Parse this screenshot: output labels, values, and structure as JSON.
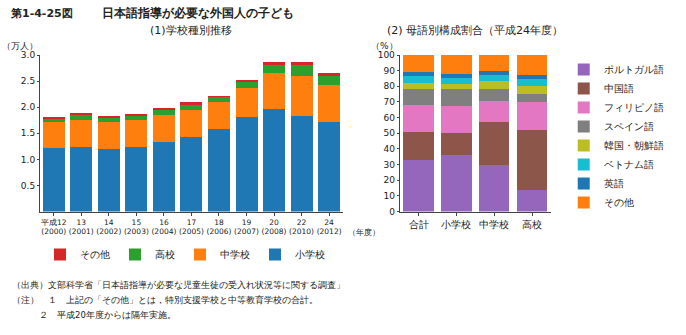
{
  "title": "日本語指導が必要な外国人の子ども",
  "annotations": [
    "第1-4-25図",
    "（出典）文部科学省「日本語指導が必要な児童生徒の受入れ状況等に関する調査」",
    "（注）　１　上記の「その他」とは，特別支援学校と中等教育学校の合計。",
    "　　　２　平成20年度からは隔年実施。"
  ],
  "chart_data": [
    {
      "type": "bar",
      "title": "(1)学校種別推移",
      "ylabel": "（万人）",
      "xlabel": "（年度）",
      "stacked": true,
      "grid": false,
      "legend": "bottom",
      "categories": [
        "平成12\n(2000)",
        "13\n(2001)",
        "14\n(2002)",
        "15\n(2003)",
        "16\n(2004)",
        "17\n(2005)",
        "18\n(2006)",
        "19\n(2007)",
        "20\n(2008)",
        "22\n(2010)",
        "24\n(2012)"
      ],
      "series": [
        {
          "name": "小学校",
          "values": [
            1.22,
            1.24,
            1.2,
            1.24,
            1.33,
            1.42,
            1.58,
            1.82,
            1.96,
            1.84,
            1.72
          ]
        },
        {
          "name": "中学校",
          "values": [
            0.49,
            0.52,
            0.52,
            0.51,
            0.52,
            0.53,
            0.52,
            0.54,
            0.69,
            0.76,
            0.7
          ]
        },
        {
          "name": "高校",
          "values": [
            0.07,
            0.09,
            0.08,
            0.08,
            0.09,
            0.1,
            0.09,
            0.13,
            0.15,
            0.2,
            0.18
          ]
        },
        {
          "name": "その他",
          "values": [
            0.03,
            0.04,
            0.04,
            0.04,
            0.04,
            0.05,
            0.03,
            0.04,
            0.06,
            0.06,
            0.05
          ]
        }
      ],
      "ylim": [
        0,
        3.0
      ],
      "yticks": [
        0.5,
        {
          "value": 1.0,
          "label": "1.0"
        },
        1.5,
        {
          "value": 2.0,
          "label": "2.0"
        },
        2.5,
        {
          "value": 3.0,
          "label": "3.0"
        }
      ]
    },
    {
      "type": "bar",
      "title": "(2) 母語別構成割合（平成24年度）",
      "ylabel": "（%）",
      "stacked": true,
      "grid": false,
      "legend": "right",
      "categories": [
        "合計",
        "小学校",
        "中学校",
        "高校"
      ],
      "series": [
        {
          "name": "ポルトガル語",
          "values": [
            33.0,
            36.0,
            30.0,
            14.0
          ]
        },
        {
          "name": "中国語",
          "values": [
            18.0,
            14.5,
            27.5,
            38.0
          ]
        },
        {
          "name": "フィリピノ語",
          "values": [
            17.0,
            17.0,
            13.0,
            18.0
          ]
        },
        {
          "name": "スペイン語",
          "values": [
            10.0,
            10.5,
            8.0,
            5.0
          ]
        },
        {
          "name": "韓国・朝鮮語",
          "values": [
            4.0,
            3.5,
            5.0,
            5.5
          ]
        },
        {
          "name": "ベトナム語",
          "values": [
            4.5,
            4.0,
            4.0,
            4.0
          ]
        },
        {
          "name": "英語",
          "values": [
            2.5,
            2.5,
            2.0,
            3.0
          ]
        },
        {
          "name": "その他",
          "values": [
            11.0,
            12.0,
            10.5,
            12.5
          ]
        }
      ],
      "ylim": [
        0,
        100
      ],
      "yticks": [
        0,
        10,
        20,
        30,
        40,
        50,
        60,
        70,
        80,
        90,
        100
      ]
    }
  ]
}
